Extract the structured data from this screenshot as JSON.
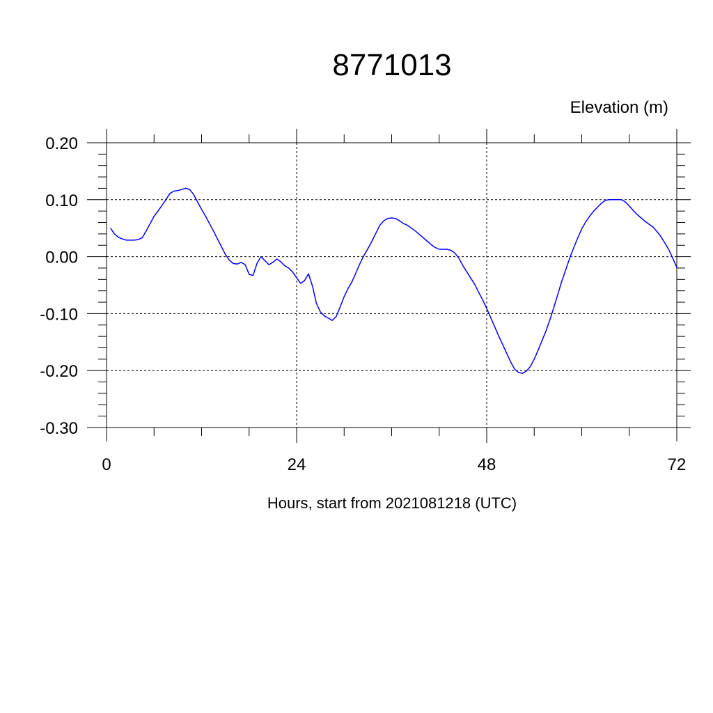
{
  "chart_data": {
    "type": "line",
    "title": "8771013",
    "ylabel": "Elevation (m)",
    "xlabel": "Hours, start from 2021081218 (UTC)",
    "xlim": [
      0,
      72
    ],
    "ylim": [
      -0.3,
      0.2
    ],
    "x_ticks": [
      0,
      24,
      48,
      72
    ],
    "x_tick_labels": [
      "0",
      "24",
      "48",
      "72"
    ],
    "y_ticks": [
      0.2,
      0.1,
      0.0,
      -0.1,
      -0.2,
      -0.3
    ],
    "y_tick_labels": [
      "0.20",
      "0.10",
      "0.00",
      "-0.10",
      "-0.20",
      "-0.30"
    ],
    "grid": true,
    "line_color": "#0000ff",
    "series": [
      {
        "x": [
          0.5,
          1,
          1.5,
          2,
          2.5,
          3,
          3.5,
          4,
          4.5,
          5,
          5.5,
          6,
          6.5,
          7,
          7.5,
          8,
          8.5,
          9,
          9.5,
          10,
          10.5,
          11,
          11.5,
          12,
          12.5,
          13,
          13.5,
          14,
          14.5,
          15,
          15.5,
          16,
          16.5,
          17,
          17.5,
          18,
          18.5,
          19,
          19.5,
          20,
          20.5,
          21,
          21.5,
          22,
          22.5,
          23,
          23.5,
          24,
          24.5,
          25,
          25.5,
          26,
          26.5,
          27,
          27.5,
          28,
          28.5,
          29,
          29.5,
          30,
          30.5,
          31,
          31.5,
          32,
          32.5,
          33,
          33.5,
          34,
          34.5,
          35,
          35.5,
          36,
          36.5,
          37,
          37.5,
          38,
          38.5,
          39,
          39.5,
          40,
          40.5,
          41,
          41.5,
          42,
          42.5,
          43,
          43.5,
          44,
          44.5,
          45,
          45.5,
          46,
          46.5,
          47,
          47.5,
          48,
          48.5,
          49,
          49.5,
          50,
          50.5,
          51,
          51.5,
          52,
          52.5,
          53,
          53.5,
          54,
          54.5,
          55,
          55.5,
          56,
          56.5,
          57,
          57.5,
          58,
          58.5,
          59,
          59.5,
          60,
          60.5,
          61,
          61.5,
          62,
          62.5,
          63,
          63.5,
          64,
          64.5,
          65,
          65.5,
          66,
          66.5,
          67,
          67.5,
          68,
          68.5,
          69,
          69.5,
          70,
          70.5,
          71,
          71.5,
          72
        ],
        "y": [
          0.05,
          0.04,
          0.034,
          0.031,
          0.029,
          0.029,
          0.029,
          0.03,
          0.033,
          0.045,
          0.058,
          0.071,
          0.08,
          0.09,
          0.1,
          0.111,
          0.115,
          0.116,
          0.118,
          0.12,
          0.118,
          0.109,
          0.096,
          0.083,
          0.071,
          0.058,
          0.045,
          0.031,
          0.018,
          0.004,
          -0.006,
          -0.012,
          -0.013,
          -0.01,
          -0.014,
          -0.031,
          -0.033,
          -0.012,
          0.0,
          -0.007,
          -0.014,
          -0.01,
          -0.004,
          -0.009,
          -0.016,
          -0.02,
          -0.027,
          -0.037,
          -0.047,
          -0.042,
          -0.03,
          -0.052,
          -0.082,
          -0.097,
          -0.104,
          -0.108,
          -0.112,
          -0.105,
          -0.088,
          -0.07,
          -0.056,
          -0.044,
          -0.028,
          -0.012,
          0.002,
          0.014,
          0.027,
          0.041,
          0.055,
          0.063,
          0.067,
          0.068,
          0.067,
          0.063,
          0.058,
          0.055,
          0.05,
          0.045,
          0.039,
          0.033,
          0.027,
          0.021,
          0.016,
          0.013,
          0.013,
          0.013,
          0.011,
          0.006,
          -0.003,
          -0.016,
          -0.027,
          -0.038,
          -0.049,
          -0.063,
          -0.076,
          -0.091,
          -0.107,
          -0.123,
          -0.139,
          -0.154,
          -0.169,
          -0.184,
          -0.197,
          -0.203,
          -0.205,
          -0.201,
          -0.193,
          -0.18,
          -0.164,
          -0.147,
          -0.13,
          -0.11,
          -0.088,
          -0.065,
          -0.042,
          -0.022,
          -0.002,
          0.016,
          0.033,
          0.049,
          0.061,
          0.071,
          0.08,
          0.087,
          0.094,
          0.099,
          0.1,
          0.1,
          0.1,
          0.1,
          0.096,
          0.089,
          0.081,
          0.074,
          0.068,
          0.062,
          0.057,
          0.052,
          0.044,
          0.035,
          0.024,
          0.012,
          -0.003,
          -0.019
        ]
      }
    ]
  }
}
